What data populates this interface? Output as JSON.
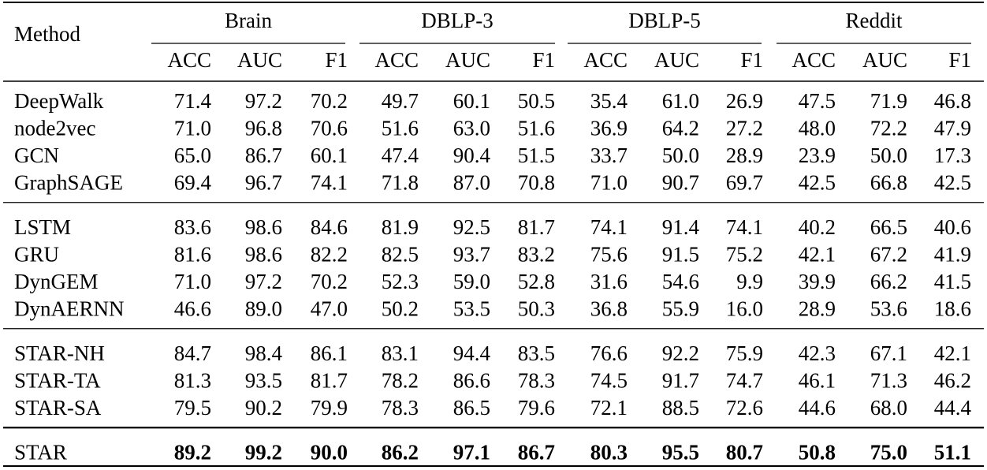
{
  "table": {
    "method_header": "Method",
    "datasets": [
      {
        "name": "Brain",
        "metrics": [
          "ACC",
          "AUC",
          "F1"
        ]
      },
      {
        "name": "DBLP-3",
        "metrics": [
          "ACC",
          "AUC",
          "F1"
        ]
      },
      {
        "name": "DBLP-5",
        "metrics": [
          "ACC",
          "AUC",
          "F1"
        ]
      },
      {
        "name": "Reddit",
        "metrics": [
          "ACC",
          "AUC",
          "F1"
        ]
      }
    ],
    "groups": [
      [
        {
          "method": "DeepWalk",
          "values": [
            "71.4",
            "97.2",
            "70.2",
            "49.7",
            "60.1",
            "50.5",
            "35.4",
            "61.0",
            "26.9",
            "47.5",
            "71.9",
            "46.8"
          ]
        },
        {
          "method": "node2vec",
          "values": [
            "71.0",
            "96.8",
            "70.6",
            "51.6",
            "63.0",
            "51.6",
            "36.9",
            "64.2",
            "27.2",
            "48.0",
            "72.2",
            "47.9"
          ]
        },
        {
          "method": "GCN",
          "values": [
            "65.0",
            "86.7",
            "60.1",
            "47.4",
            "90.4",
            "51.5",
            "33.7",
            "50.0",
            "28.9",
            "23.9",
            "50.0",
            "17.3"
          ]
        },
        {
          "method": "GraphSAGE",
          "values": [
            "69.4",
            "96.7",
            "74.1",
            "71.8",
            "87.0",
            "70.8",
            "71.0",
            "90.7",
            "69.7",
            "42.5",
            "66.8",
            "42.5"
          ]
        }
      ],
      [
        {
          "method": "LSTM",
          "values": [
            "83.6",
            "98.6",
            "84.6",
            "81.9",
            "92.5",
            "81.7",
            "74.1",
            "91.4",
            "74.1",
            "40.2",
            "66.5",
            "40.6"
          ]
        },
        {
          "method": "GRU",
          "values": [
            "81.6",
            "98.6",
            "82.2",
            "82.5",
            "93.7",
            "83.2",
            "75.6",
            "91.5",
            "75.2",
            "42.1",
            "67.2",
            "41.9"
          ]
        },
        {
          "method": "DynGEM",
          "values": [
            "71.0",
            "97.2",
            "70.2",
            "52.3",
            "59.0",
            "52.8",
            "31.6",
            "54.6",
            "9.9",
            "39.9",
            "66.2",
            "41.5"
          ]
        },
        {
          "method": "DynAERNN",
          "values": [
            "46.6",
            "89.0",
            "47.0",
            "50.2",
            "53.5",
            "50.3",
            "36.8",
            "55.9",
            "16.0",
            "28.9",
            "53.6",
            "18.6"
          ]
        }
      ],
      [
        {
          "method": "STAR-NH",
          "values": [
            "84.7",
            "98.4",
            "86.1",
            "83.1",
            "94.4",
            "83.5",
            "76.6",
            "92.2",
            "75.9",
            "42.3",
            "67.1",
            "42.1"
          ]
        },
        {
          "method": "STAR-TA",
          "values": [
            "81.3",
            "93.5",
            "81.7",
            "78.2",
            "86.6",
            "78.3",
            "74.5",
            "91.7",
            "74.7",
            "46.1",
            "71.3",
            "46.2"
          ]
        },
        {
          "method": "STAR-SA",
          "values": [
            "79.5",
            "90.2",
            "79.9",
            "78.3",
            "86.5",
            "79.6",
            "72.1",
            "88.5",
            "72.6",
            "44.6",
            "68.0",
            "44.4"
          ]
        }
      ],
      [
        {
          "method": "STAR",
          "values": [
            "89.2",
            "99.2",
            "90.0",
            "86.2",
            "97.1",
            "86.7",
            "80.3",
            "95.5",
            "80.7",
            "50.8",
            "75.0",
            "51.1"
          ]
        }
      ]
    ]
  }
}
